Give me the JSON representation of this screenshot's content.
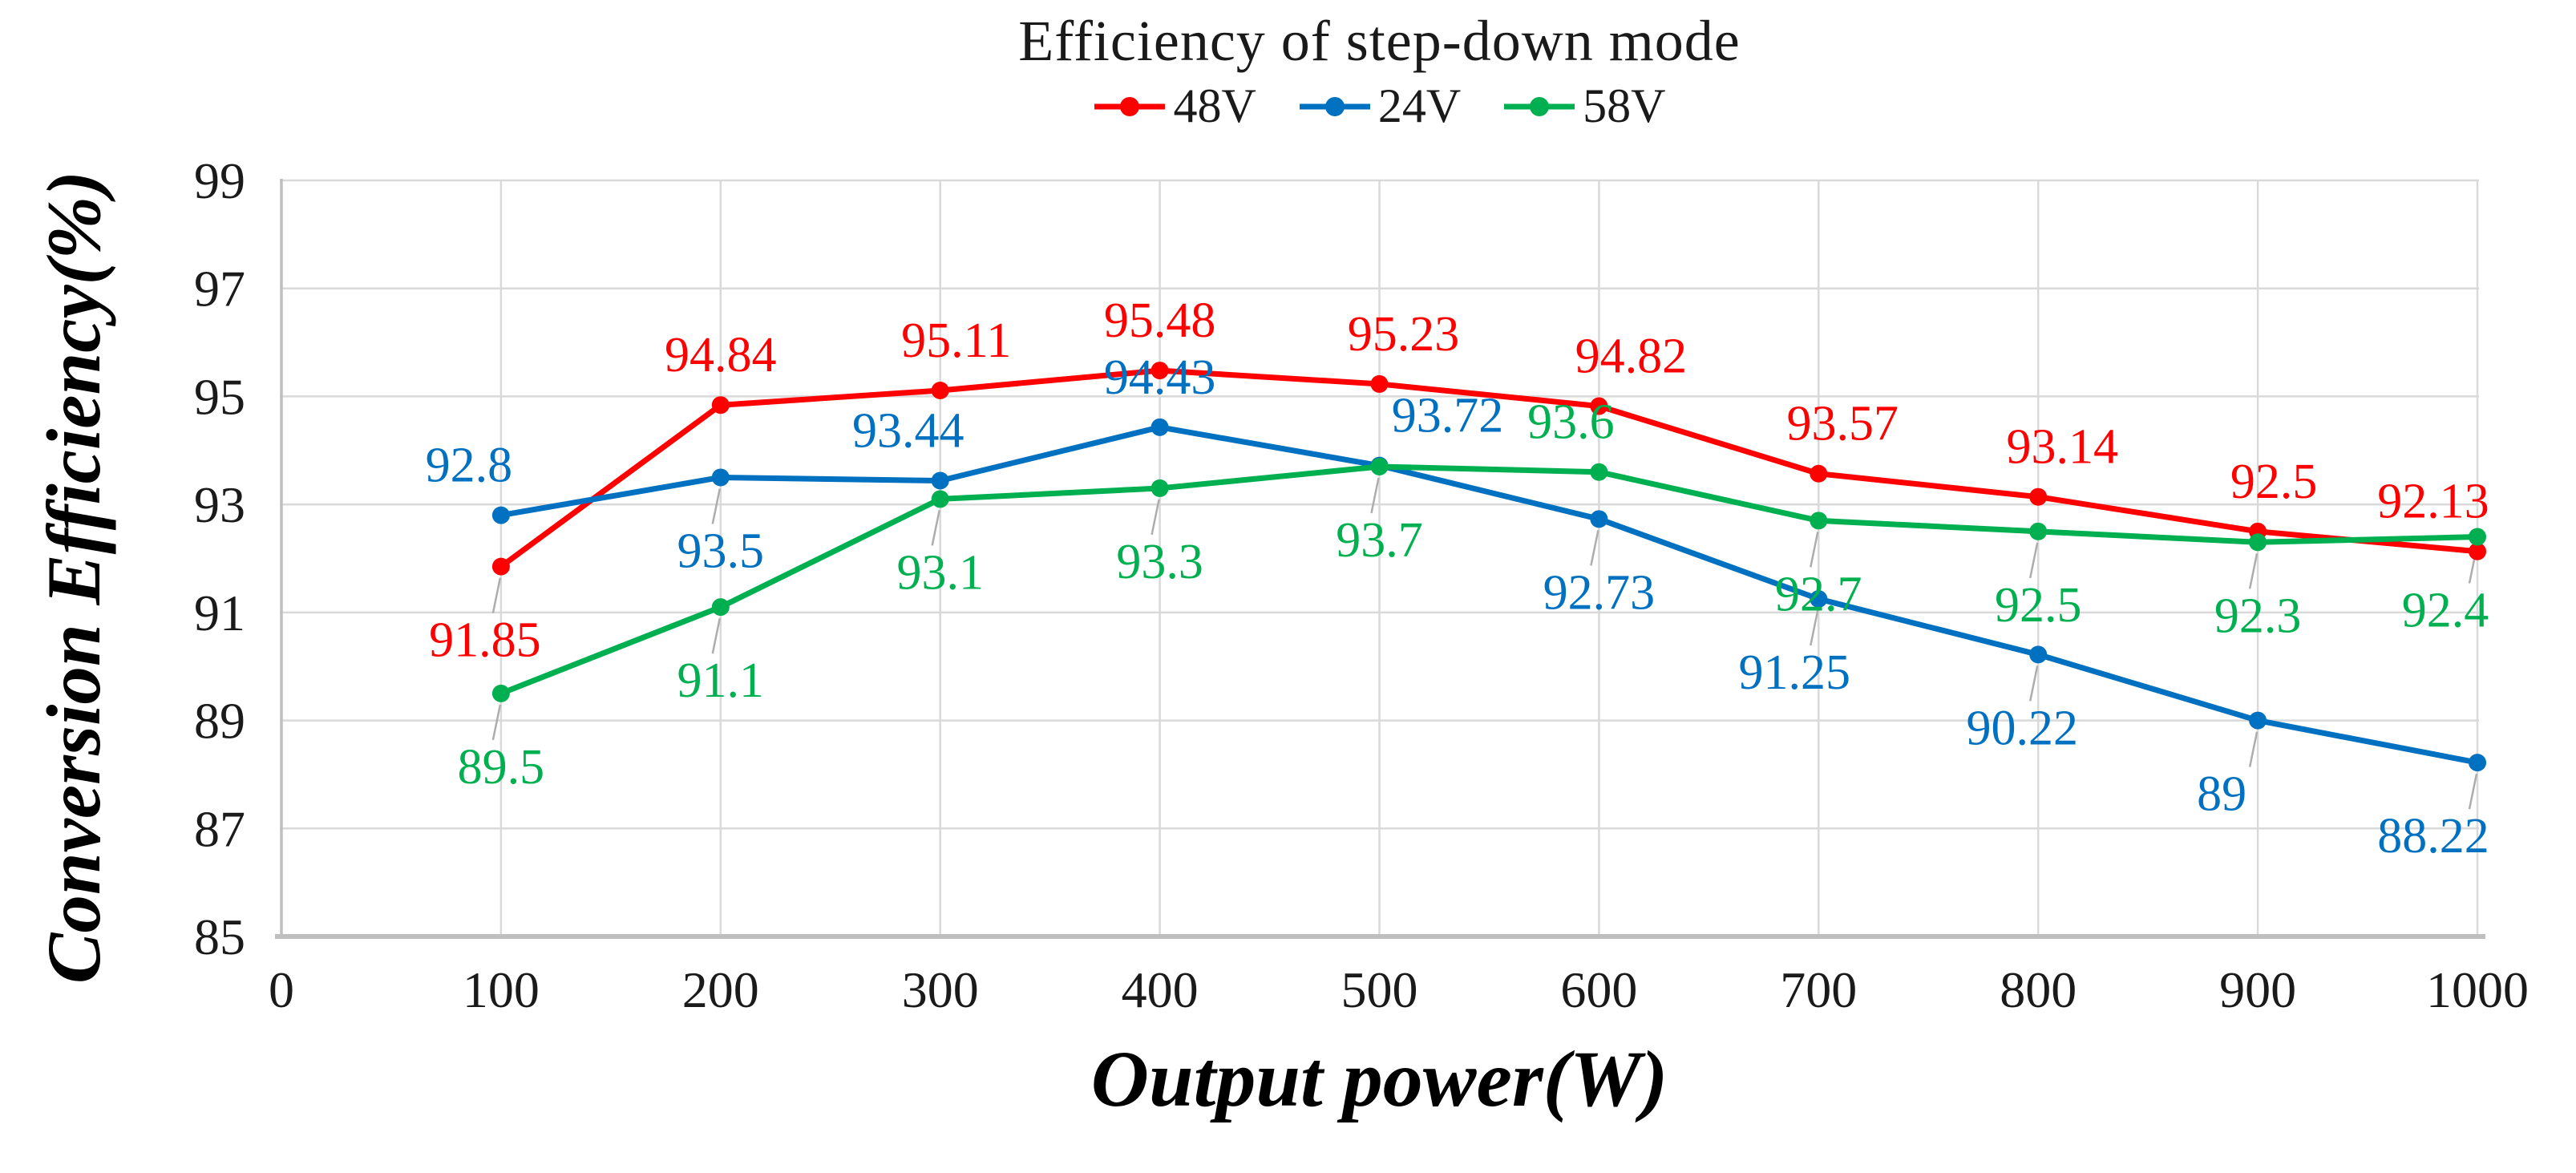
{
  "page": {
    "background": "#ffffff"
  },
  "chart_data": {
    "type": "line",
    "title": "Efficiency of step-down mode",
    "xlabel": "Output power(W)",
    "ylabel": "Conversion Efficiency(%)",
    "legend_position": "top",
    "grid": true,
    "x": [
      100,
      200,
      300,
      400,
      500,
      600,
      700,
      800,
      900,
      1000
    ],
    "xlim": [
      0,
      1000
    ],
    "ylim": [
      85,
      99
    ],
    "xtick_step": 100,
    "ytick_step": 2,
    "xticks": [
      0,
      100,
      200,
      300,
      400,
      500,
      600,
      700,
      800,
      900,
      1000
    ],
    "yticks": [
      85,
      87,
      89,
      91,
      93,
      95,
      97,
      99
    ],
    "series": [
      {
        "name": "48V",
        "color": "#FE0000",
        "values": [
          91.85,
          94.84,
          95.11,
          95.48,
          95.23,
          94.82,
          93.57,
          93.14,
          92.5,
          92.13
        ],
        "label_side": [
          "below",
          "above",
          "above",
          "above",
          "above",
          "above",
          "above",
          "above",
          "above",
          "above"
        ],
        "label_dx": [
          -20,
          0,
          20,
          0,
          30,
          40,
          30,
          30,
          20,
          -55
        ]
      },
      {
        "name": "24V",
        "color": "#0070C0",
        "values": [
          92.8,
          93.5,
          93.44,
          94.43,
          93.72,
          92.73,
          91.25,
          90.22,
          89,
          88.22
        ],
        "label_side": [
          "above",
          "below",
          "above",
          "above",
          "above",
          "below",
          "below",
          "below",
          "below",
          "below"
        ],
        "label_dx": [
          -40,
          0,
          -40,
          0,
          85,
          0,
          -30,
          -20,
          -45,
          -55
        ]
      },
      {
        "name": "58V",
        "color": "#00B050",
        "values": [
          89.5,
          91.1,
          93.1,
          93.3,
          93.7,
          93.6,
          92.7,
          92.5,
          92.3,
          92.4
        ],
        "label_side": [
          "below",
          "below",
          "below",
          "below",
          "below",
          "above",
          "below",
          "below",
          "below",
          "below"
        ],
        "label_dx": [
          0,
          0,
          0,
          0,
          0,
          -35,
          0,
          0,
          0,
          -40
        ]
      }
    ],
    "colors": {
      "gridline": "#D9D9D9",
      "axis_line": "#BFBFBF",
      "leader_line": "#ADADAD",
      "tick_text": "#1a1a1a"
    }
  }
}
